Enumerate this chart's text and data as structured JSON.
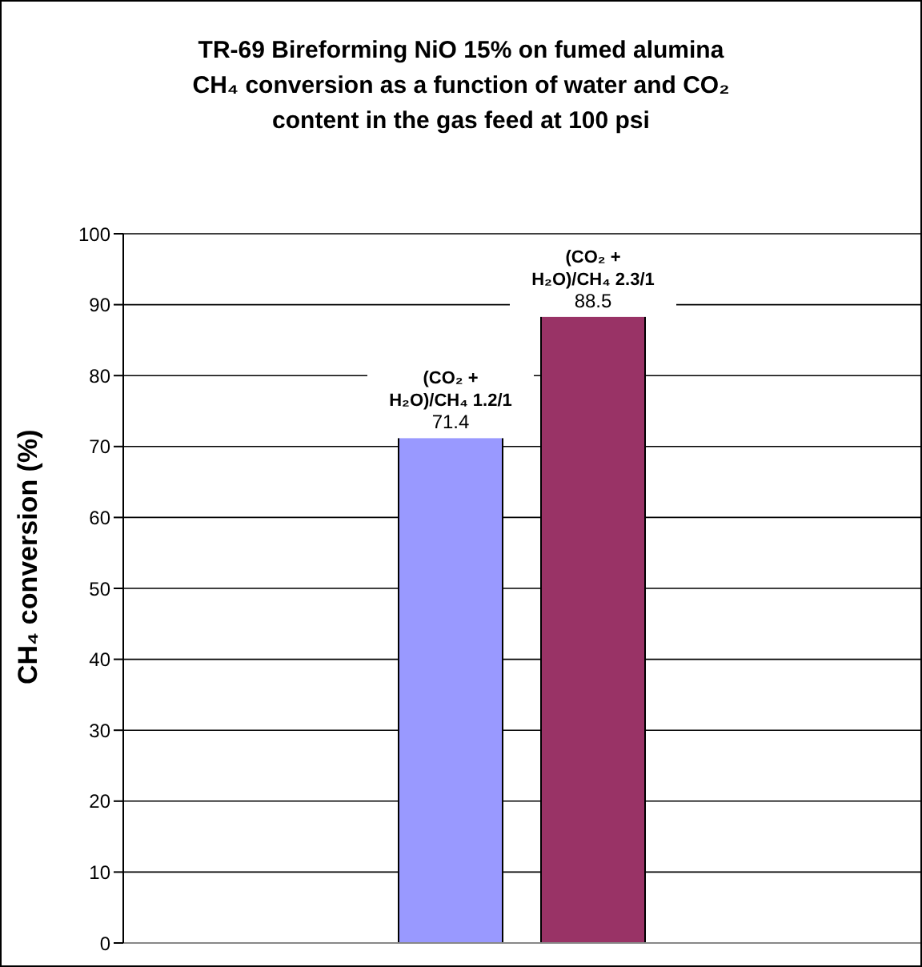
{
  "chart_data": {
    "type": "bar",
    "title": "TR-69 Bireforming NiO 15% on fumed alumina\nCH₄ conversion as a function of water and CO₂\ncontent in the gas feed at 100 psi",
    "ylabel": "CH₄ conversion (%)",
    "categories": [
      null
    ],
    "series": [
      {
        "name": "(CO₂ + H₂O)/CH₄ 1.2/1",
        "color": "#9999ff",
        "values": [
          71.4
        ]
      },
      {
        "name": "(CO₂ + H₂O)/CH₄ 2.3/1",
        "color": "#993366",
        "values": [
          88.5
        ]
      }
    ],
    "ylim": [
      0,
      100
    ],
    "yticks": [
      0,
      10,
      20,
      30,
      40,
      50,
      60,
      70,
      80,
      90,
      100
    ],
    "grid": "y",
    "data_labels": true,
    "legend": false
  }
}
